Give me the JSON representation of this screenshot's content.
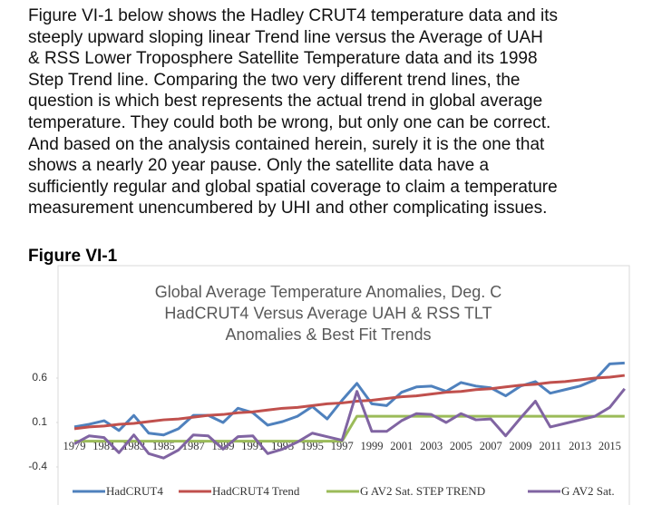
{
  "body": {
    "lines": [
      "Figure VI-1 below shows the Hadley CRUT4 temperature data and its",
      "steeply upward sloping linear Trend line versus the Average of UAH",
      "& RSS Lower Troposphere Satellite Temperature data and its 1998",
      "Step Trend line. Comparing the two very different trend lines, the",
      "question is which best represents the actual trend in global average",
      "temperature. They could both be wrong, but only one can be correct.",
      "And based on the analysis contained herein, surely it is the one that",
      "shows a nearly 20 year pause. Only the satellite data have a",
      "sufficiently regular and global spatial coverage to claim a temperature",
      "measurement unencumbered by UHI and other complicating issues."
    ]
  },
  "figure_label": "Figure VI-1",
  "chart_data": {
    "type": "line",
    "title": [
      "Global Average Temperature Anomalies, Deg. C",
      "HadCRUT4 Versus Average UAH & RSS TLT",
      "Anomalies & Best Fit Trends"
    ],
    "categories": [
      "1979",
      null,
      "1981",
      null,
      "1983",
      null,
      "1985",
      null,
      "1987",
      null,
      "1989",
      null,
      "1991",
      null,
      "1993",
      null,
      "1995",
      null,
      "1997",
      null,
      "1999",
      null,
      "2001",
      null,
      "2003",
      null,
      "2005",
      null,
      "2007",
      null,
      "2009",
      null,
      "2011",
      null,
      "2013",
      null,
      "2015",
      null
    ],
    "ylim": [
      -0.4,
      0.85
    ],
    "yticks": [
      -0.4,
      0.1,
      0.6
    ],
    "grid": false,
    "series": [
      {
        "name": "HadCRUT4",
        "color": "#4f81bd",
        "values": [
          0.05,
          0.08,
          0.12,
          0.01,
          0.18,
          -0.02,
          -0.04,
          0.03,
          0.18,
          0.18,
          0.1,
          0.26,
          0.21,
          0.07,
          0.11,
          0.17,
          0.28,
          0.14,
          0.35,
          0.54,
          0.31,
          0.29,
          0.44,
          0.5,
          0.51,
          0.45,
          0.55,
          0.51,
          0.49,
          0.4,
          0.51,
          0.56,
          0.43,
          0.47,
          0.51,
          0.58,
          0.76,
          0.77
        ]
      },
      {
        "name": "HadCRUT4 Trend",
        "color": "#c0504d",
        "values": [
          0.03,
          0.05,
          0.06,
          0.08,
          0.09,
          0.11,
          0.13,
          0.14,
          0.16,
          0.18,
          0.19,
          0.21,
          0.22,
          0.24,
          0.26,
          0.27,
          0.29,
          0.31,
          0.32,
          0.34,
          0.35,
          0.37,
          0.39,
          0.4,
          0.42,
          0.44,
          0.45,
          0.47,
          0.48,
          0.5,
          0.52,
          0.53,
          0.55,
          0.56,
          0.58,
          0.6,
          0.61,
          0.63
        ]
      },
      {
        "name": "G AV2 Sat. STEP TREND",
        "color": "#9bbb59",
        "values": [
          -0.11,
          -0.11,
          -0.11,
          -0.11,
          -0.11,
          -0.11,
          -0.11,
          -0.11,
          -0.11,
          -0.11,
          -0.11,
          -0.11,
          -0.11,
          -0.11,
          -0.11,
          -0.11,
          -0.11,
          -0.11,
          -0.11,
          0.17,
          0.17,
          0.17,
          0.17,
          0.17,
          0.17,
          0.17,
          0.17,
          0.17,
          0.17,
          0.17,
          0.17,
          0.17,
          0.17,
          0.17,
          0.17,
          0.17,
          0.17,
          0.17
        ]
      },
      {
        "name": "G AV2 Sat.",
        "color": "#8064a2",
        "values": [
          -0.14,
          -0.05,
          -0.07,
          -0.24,
          -0.04,
          -0.25,
          -0.3,
          -0.21,
          -0.04,
          -0.05,
          -0.2,
          -0.06,
          -0.05,
          -0.25,
          -0.2,
          -0.12,
          -0.02,
          -0.06,
          -0.1,
          0.45,
          0.0,
          0.0,
          0.12,
          0.2,
          0.19,
          0.1,
          0.2,
          0.13,
          0.14,
          -0.05,
          0.15,
          0.34,
          0.05,
          0.09,
          0.13,
          0.17,
          0.27,
          0.48
        ]
      }
    ]
  }
}
